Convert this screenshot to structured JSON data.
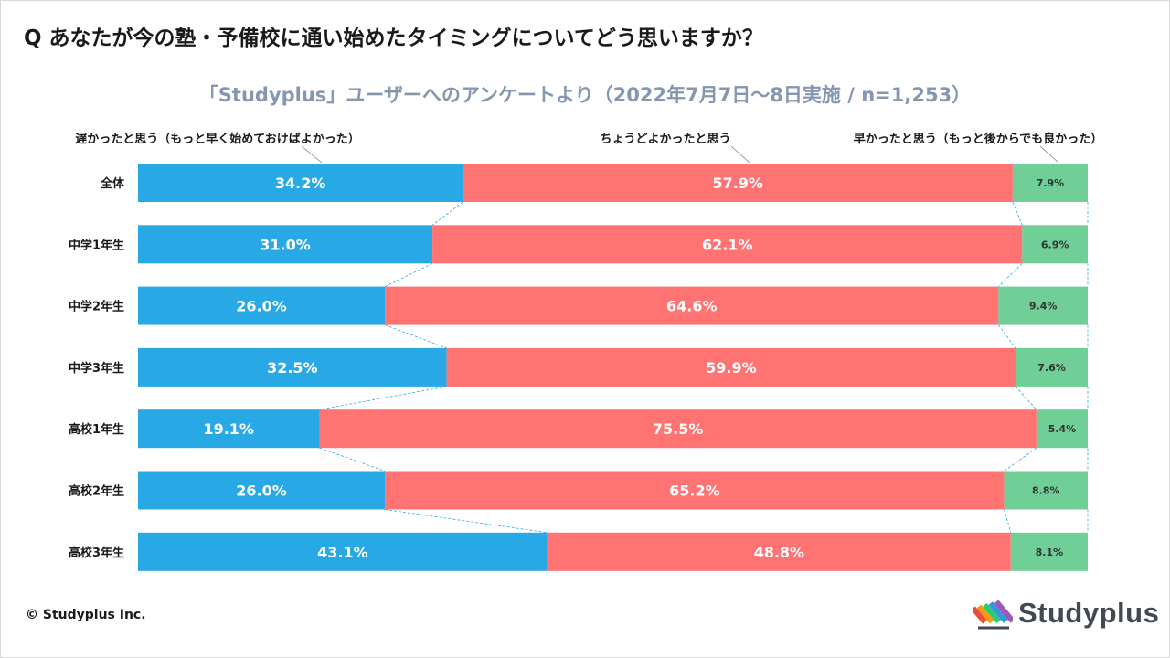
{
  "question": "Q あなたが今の塾・予備校に通い始めたタイミングについてどう思いますか？",
  "subtitle": "「Studyplus」ユーザーへのアンケートより（2022年7月7日〜8日実施 / n=1,253）",
  "footer": {
    "copyright": "© Studyplus Inc.",
    "logo_text": "Studyplus"
  },
  "colors": {
    "late": "#29a8e6",
    "just": "#ff7373",
    "early": "#6fcf97",
    "connector": "#29a8e6"
  },
  "chart_data": {
    "type": "bar",
    "orientation": "horizontal",
    "stacked": true,
    "normalized": true,
    "categories": [
      "全体",
      "中学1年生",
      "中学2年生",
      "中学3年生",
      "高校1年生",
      "高校2年生",
      "高校3年生"
    ],
    "series": [
      {
        "name": "遅かったと思う（もっと早く始めておけばよかった）",
        "values": [
          34.2,
          31.0,
          26.0,
          32.5,
          19.1,
          26.0,
          43.1
        ],
        "labels": [
          "34.2%",
          "31.0%",
          "26.0%",
          "32.5%",
          "19.1%",
          "26.0%",
          "43.1%"
        ]
      },
      {
        "name": "ちょうどよかったと思う",
        "values": [
          57.9,
          62.1,
          64.6,
          59.9,
          75.5,
          65.2,
          48.8
        ],
        "labels": [
          "57.9%",
          "62.1%",
          "64.6%",
          "59.9%",
          "75.5%",
          "65.2%",
          "48.8%"
        ]
      },
      {
        "name": "早かったと思う（もっと後からでも良かった）",
        "values": [
          7.9,
          6.9,
          9.4,
          7.6,
          5.4,
          8.8,
          8.1
        ],
        "labels": [
          "7.9%",
          "6.9%",
          "9.4%",
          "7.6%",
          "5.4%",
          "8.8%",
          "8.1%"
        ]
      }
    ],
    "series_lines": true,
    "legend_position": "top"
  }
}
